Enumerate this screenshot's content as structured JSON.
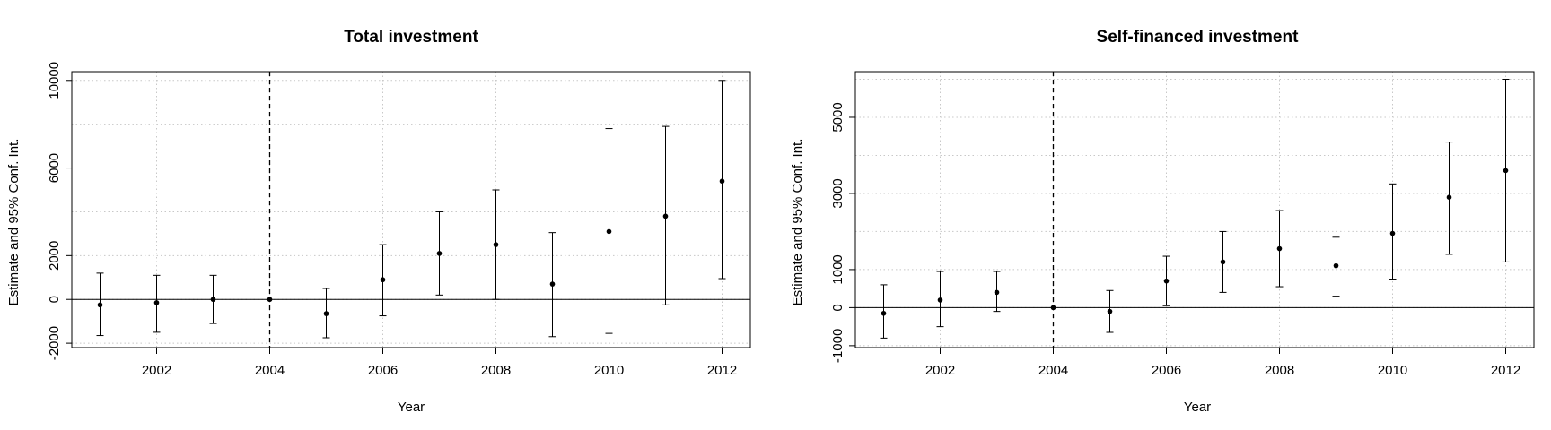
{
  "chart_data": [
    {
      "type": "scatter",
      "title": "Total investment",
      "xlabel": "Year",
      "ylabel": "Estimate and 95% Conf. Int.",
      "xlim": [
        2000.5,
        2012.5
      ],
      "ylim": [
        -2200,
        10400
      ],
      "x_ticks": [
        2002,
        2004,
        2006,
        2008,
        2010,
        2012
      ],
      "y_ticks": [
        -2000,
        0,
        2000,
        6000,
        10000
      ],
      "y_grid": [
        -2000,
        0,
        2000,
        4000,
        6000,
        8000,
        10000
      ],
      "grid": true,
      "reference_line_y": 0,
      "reference_line_x": 2004,
      "points": [
        {
          "x": 2001,
          "estimate": -250,
          "lower": -1650,
          "upper": 1200
        },
        {
          "x": 2002,
          "estimate": -150,
          "lower": -1500,
          "upper": 1100
        },
        {
          "x": 2003,
          "estimate": 0,
          "lower": -1100,
          "upper": 1100
        },
        {
          "x": 2004,
          "estimate": 0,
          "lower": 0,
          "upper": 0
        },
        {
          "x": 2005,
          "estimate": -650,
          "lower": -1750,
          "upper": 500
        },
        {
          "x": 2006,
          "estimate": 900,
          "lower": -750,
          "upper": 2500
        },
        {
          "x": 2007,
          "estimate": 2100,
          "lower": 200,
          "upper": 4000
        },
        {
          "x": 2008,
          "estimate": 2500,
          "lower": 0,
          "upper": 5000
        },
        {
          "x": 2009,
          "estimate": 700,
          "lower": -1700,
          "upper": 3050
        },
        {
          "x": 2010,
          "estimate": 3100,
          "lower": -1550,
          "upper": 7800
        },
        {
          "x": 2011,
          "estimate": 3800,
          "lower": -250,
          "upper": 7900
        },
        {
          "x": 2012,
          "estimate": 5400,
          "lower": 950,
          "upper": 10000
        }
      ]
    },
    {
      "type": "scatter",
      "title": "Self-financed investment",
      "xlabel": "Year",
      "ylabel": "Estimate and 95% Conf. Int.",
      "xlim": [
        2000.5,
        2012.5
      ],
      "ylim": [
        -1050,
        6200
      ],
      "x_ticks": [
        2002,
        2004,
        2006,
        2008,
        2010,
        2012
      ],
      "y_ticks": [
        -1000,
        0,
        1000,
        3000,
        5000
      ],
      "y_grid": [
        -1000,
        0,
        1000,
        2000,
        3000,
        4000,
        5000,
        6000
      ],
      "grid": true,
      "reference_line_y": 0,
      "reference_line_x": 2004,
      "points": [
        {
          "x": 2001,
          "estimate": -150,
          "lower": -800,
          "upper": 600
        },
        {
          "x": 2002,
          "estimate": 200,
          "lower": -500,
          "upper": 950
        },
        {
          "x": 2003,
          "estimate": 400,
          "lower": -100,
          "upper": 950
        },
        {
          "x": 2004,
          "estimate": 0,
          "lower": 0,
          "upper": 0
        },
        {
          "x": 2005,
          "estimate": -100,
          "lower": -650,
          "upper": 450
        },
        {
          "x": 2006,
          "estimate": 700,
          "lower": 50,
          "upper": 1350
        },
        {
          "x": 2007,
          "estimate": 1200,
          "lower": 400,
          "upper": 2000
        },
        {
          "x": 2008,
          "estimate": 1550,
          "lower": 550,
          "upper": 2550
        },
        {
          "x": 2009,
          "estimate": 1100,
          "lower": 300,
          "upper": 1850
        },
        {
          "x": 2010,
          "estimate": 1950,
          "lower": 750,
          "upper": 3250
        },
        {
          "x": 2011,
          "estimate": 2900,
          "lower": 1400,
          "upper": 4350
        },
        {
          "x": 2012,
          "estimate": 3600,
          "lower": 1200,
          "upper": 6000
        }
      ]
    }
  ]
}
